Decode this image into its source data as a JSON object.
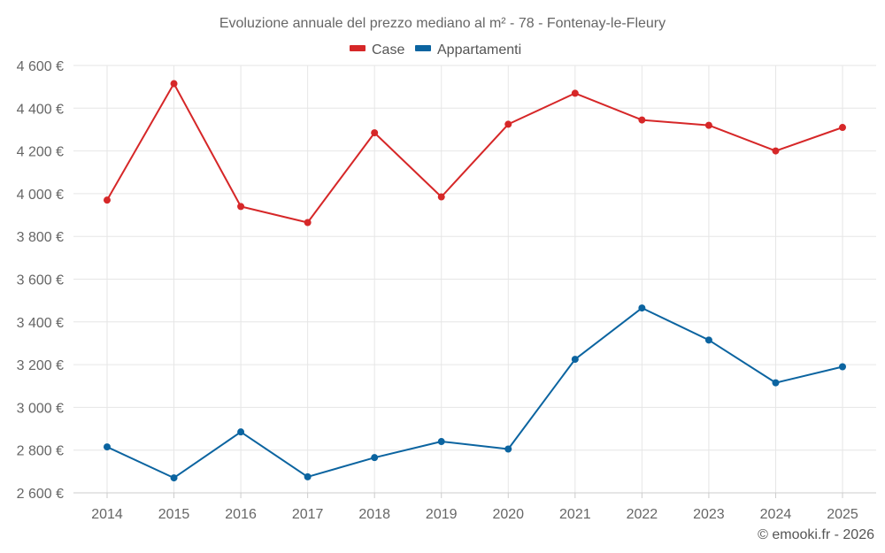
{
  "chart_data": {
    "type": "line",
    "title": "Evoluzione annuale del prezzo mediano al m² - 78 - Fontenay-le-Fleury",
    "xlabel": "",
    "ylabel": "",
    "categories": [
      "2014",
      "2015",
      "2016",
      "2017",
      "2018",
      "2019",
      "2020",
      "2021",
      "2022",
      "2023",
      "2024",
      "2025"
    ],
    "ylim": [
      2600,
      4600
    ],
    "yticks": [
      2600,
      2800,
      3000,
      3200,
      3400,
      3600,
      3800,
      4000,
      4200,
      4400,
      4600
    ],
    "ytick_labels": [
      "2 600 €",
      "2 800 €",
      "3 000 €",
      "3 200 €",
      "3 400 €",
      "3 600 €",
      "3 800 €",
      "4 000 €",
      "4 200 €",
      "4 400 €",
      "4 600 €"
    ],
    "grid": true,
    "legend_position": "top-center",
    "series": [
      {
        "name": "Case",
        "color": "#d62728",
        "values": [
          3970,
          4515,
          3940,
          3865,
          4285,
          3985,
          4325,
          4470,
          4345,
          4320,
          4200,
          4310
        ]
      },
      {
        "name": "Appartamenti",
        "color": "#0b64a0",
        "values": [
          2815,
          2670,
          2885,
          2675,
          2765,
          2840,
          2805,
          3225,
          3465,
          3315,
          3115,
          3190
        ]
      }
    ]
  },
  "credit": "© emooki.fr - 2026"
}
